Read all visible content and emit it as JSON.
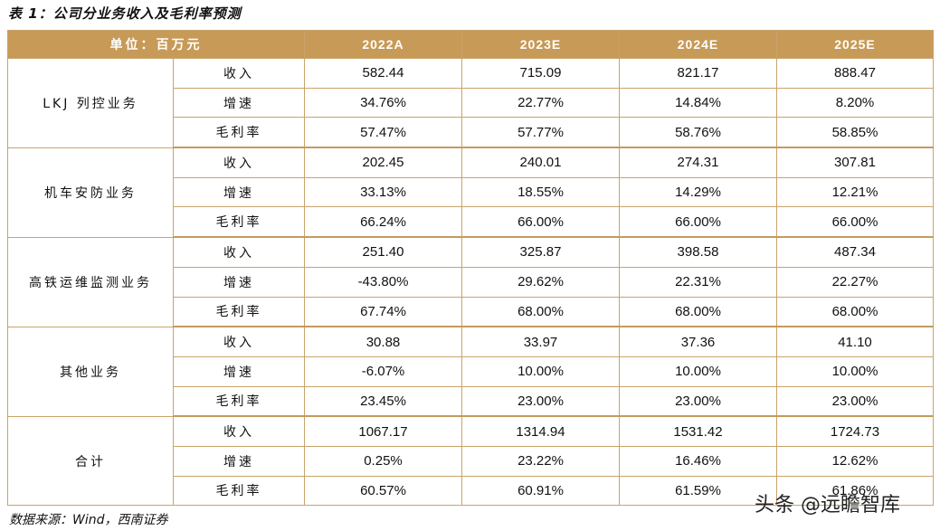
{
  "title": "表 1：公司分业务收入及毛利率预测",
  "header": {
    "unit": "单位：百万元",
    "years": [
      "2022A",
      "2023E",
      "2024E",
      "2025E"
    ]
  },
  "segments": [
    {
      "name": "LKJ 列控业务",
      "rows": [
        {
          "metric": "收入",
          "values": [
            "582.44",
            "715.09",
            "821.17",
            "888.47"
          ]
        },
        {
          "metric": "增速",
          "values": [
            "34.76%",
            "22.77%",
            "14.84%",
            "8.20%"
          ]
        },
        {
          "metric": "毛利率",
          "values": [
            "57.47%",
            "57.77%",
            "58.76%",
            "58.85%"
          ]
        }
      ]
    },
    {
      "name": "机车安防业务",
      "rows": [
        {
          "metric": "收入",
          "values": [
            "202.45",
            "240.01",
            "274.31",
            "307.81"
          ]
        },
        {
          "metric": "增速",
          "values": [
            "33.13%",
            "18.55%",
            "14.29%",
            "12.21%"
          ]
        },
        {
          "metric": "毛利率",
          "values": [
            "66.24%",
            "66.00%",
            "66.00%",
            "66.00%"
          ]
        }
      ]
    },
    {
      "name": "高铁运维监测业务",
      "rows": [
        {
          "metric": "收入",
          "values": [
            "251.40",
            "325.87",
            "398.58",
            "487.34"
          ]
        },
        {
          "metric": "增速",
          "values": [
            "-43.80%",
            "29.62%",
            "22.31%",
            "22.27%"
          ]
        },
        {
          "metric": "毛利率",
          "values": [
            "67.74%",
            "68.00%",
            "68.00%",
            "68.00%"
          ]
        }
      ]
    },
    {
      "name": "其他业务",
      "rows": [
        {
          "metric": "收入",
          "values": [
            "30.88",
            "33.97",
            "37.36",
            "41.10"
          ]
        },
        {
          "metric": "增速",
          "values": [
            "-6.07%",
            "10.00%",
            "10.00%",
            "10.00%"
          ]
        },
        {
          "metric": "毛利率",
          "values": [
            "23.45%",
            "23.00%",
            "23.00%",
            "23.00%"
          ]
        }
      ]
    },
    {
      "name": "合计",
      "rows": [
        {
          "metric": "收入",
          "values": [
            "1067.17",
            "1314.94",
            "1531.42",
            "1724.73"
          ]
        },
        {
          "metric": "增速",
          "values": [
            "0.25%",
            "23.22%",
            "16.46%",
            "12.62%"
          ]
        },
        {
          "metric": "毛利率",
          "values": [
            "60.57%",
            "60.91%",
            "61.59%",
            "61.86%"
          ]
        }
      ]
    }
  ],
  "source": "数据来源：Wind，西南证券",
  "watermark": "头条 @远瞻智库",
  "colors": {
    "header_bg": "#c79a57",
    "border": "#c9a36b",
    "header_text": "#ffffff"
  }
}
